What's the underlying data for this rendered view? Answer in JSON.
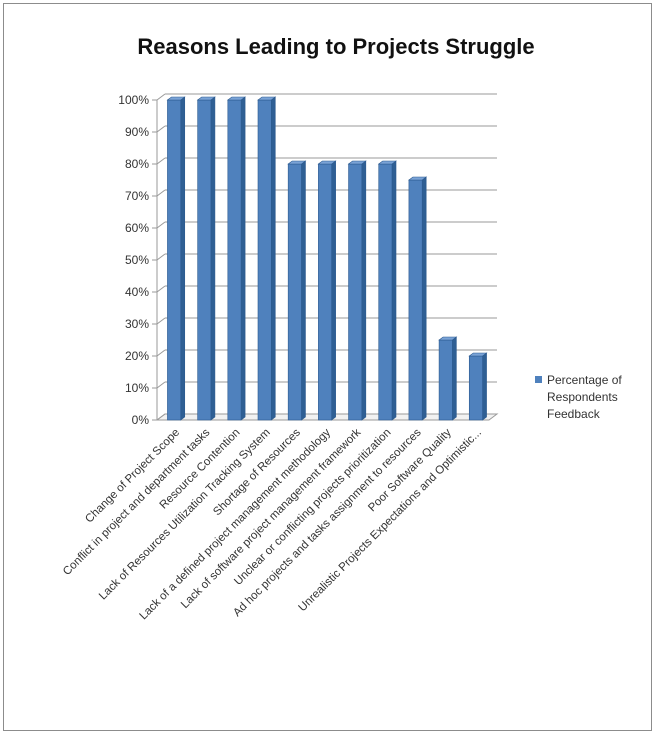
{
  "chart_data": {
    "type": "bar",
    "title": "Reasons Leading to Projects Struggle",
    "xlabel": "",
    "ylabel": "",
    "categories": [
      "Change of Project Scope",
      "Conflict in project and department tasks",
      "Resource Contention",
      "Lack of Resources Utilization Tracking System",
      "Shortage of Resources",
      "Lack of a defined project management methodology",
      "Lack of  software  project management  framework",
      "Unclear or conflicting projects prioritization",
      "Ad hoc projects and tasks assignment to resources",
      "Poor Software Quality",
      "Unrealistic Projects Expectations and Optimistic..."
    ],
    "series": [
      {
        "name": "Percentage of Respondents Feedback",
        "values": [
          100,
          100,
          100,
          100,
          80,
          80,
          80,
          80,
          75,
          25,
          20
        ]
      }
    ],
    "ylim": [
      0,
      100
    ],
    "yticks": [
      "0%",
      "10%",
      "20%",
      "30%",
      "40%",
      "50%",
      "60%",
      "70%",
      "80%",
      "90%",
      "100%"
    ],
    "grid": true,
    "legend_position": "right",
    "legend_lines": [
      "Percentage of",
      "Respondents",
      "Feedback"
    ],
    "bar_color": "#4f81bd",
    "bar_edge_color": "#2c5a8f"
  }
}
